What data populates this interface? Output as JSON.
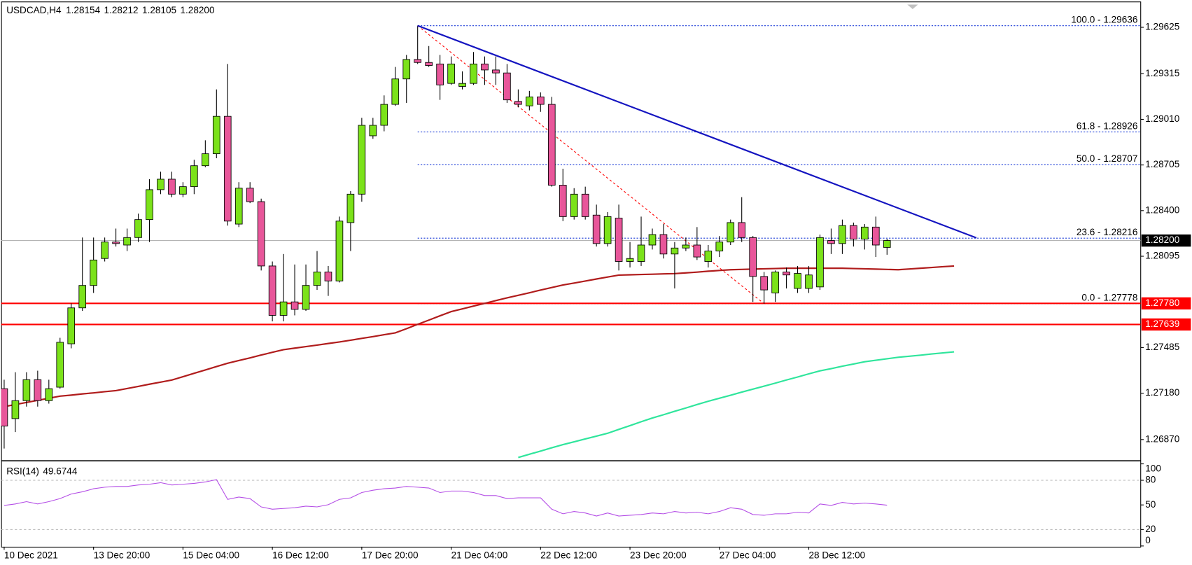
{
  "chart_data": {
    "type": "candlestick",
    "title": "USDCAD,H4",
    "categories": [
      "10 Dec 2021",
      null,
      null,
      null,
      null,
      null,
      null,
      null,
      "13 Dec 20:00",
      null,
      null,
      null,
      null,
      null,
      null,
      null,
      "15 Dec 04:00",
      null,
      null,
      null,
      null,
      null,
      null,
      null,
      "16 Dec 12:00",
      null,
      null,
      null,
      null,
      null,
      null,
      null,
      "17 Dec 20:00",
      null,
      null,
      null,
      null,
      null,
      null,
      null,
      "21 Dec 04:00",
      null,
      null,
      null,
      null,
      null,
      null,
      null,
      "22 Dec 12:00",
      null,
      null,
      null,
      null,
      null,
      null,
      null,
      "23 Dec 20:00",
      null,
      null,
      null,
      null,
      null,
      null,
      null,
      "27 Dec 04:00",
      null,
      null,
      null,
      null,
      null,
      null,
      null,
      "28 Dec 12:00",
      null,
      null,
      null,
      null,
      null,
      null,
      null,
      null,
      null,
      null,
      null,
      null,
      null,
      null,
      null
    ],
    "open": [
      1.2721,
      1.2701,
      1.2713,
      1.2727,
      1.2713,
      1.2722,
      1.2751,
      1.2775,
      1.279,
      1.2808,
      1.2819,
      1.2817,
      1.2822,
      1.2834,
      1.2854,
      1.2861,
      1.2851,
      1.2856,
      1.287,
      1.2878,
      1.2903,
      1.2831,
      1.2855,
      1.2846,
      1.2803,
      1.277,
      1.2779,
      1.2774,
      1.279,
      1.2799,
      1.2793,
      1.2832,
      1.2851,
      1.289,
      1.2897,
      1.2911,
      1.2928,
      1.2941,
      1.2939,
      1.2938,
      1.2925,
      1.2923,
      1.2925,
      1.2938,
      1.2934,
      1.2932,
      1.2913,
      1.291,
      1.2916,
      1.2911,
      1.2857,
      1.2836,
      1.2851,
      1.2837,
      1.2818,
      1.2835,
      1.2806,
      1.2806,
      1.2817,
      1.2824,
      1.2811,
      1.2815,
      1.2817,
      1.2806,
      1.2813,
      1.2819,
      1.2832,
      1.2822,
      1.2796,
      1.2785,
      1.2799,
      1.2788,
      1.2788,
      1.2789,
      1.282,
      1.2818,
      1.283,
      1.2821,
      1.2829,
      1.28154,
      null,
      null,
      null,
      null,
      null,
      null,
      null,
      null
    ],
    "high": [
      1.2727,
      1.2732,
      1.2732,
      1.2733,
      1.2727,
      1.2755,
      1.2778,
      1.2822,
      1.2822,
      1.2822,
      1.2828,
      1.2828,
      1.2838,
      1.2861,
      1.2866,
      1.2866,
      1.2859,
      1.2874,
      1.2887,
      1.2921,
      1.2938,
      1.2859,
      1.2859,
      1.2848,
      1.2806,
      1.2811,
      1.2804,
      1.2804,
      1.2813,
      1.2803,
      1.2836,
      1.2853,
      1.2902,
      1.2902,
      1.2917,
      1.2936,
      1.2944,
      1.29636,
      1.295,
      1.2944,
      1.2943,
      1.2933,
      1.2946,
      1.2943,
      1.2943,
      1.2938,
      1.2921,
      1.292,
      1.2919,
      1.2916,
      1.2868,
      1.2855,
      1.2856,
      1.2844,
      1.2839,
      1.2844,
      1.2819,
      1.2836,
      1.2828,
      1.2831,
      1.2819,
      1.2822,
      1.2829,
      1.2817,
      1.2823,
      1.2834,
      1.2849,
      1.2823,
      1.2799,
      1.28,
      1.2802,
      1.2803,
      1.2803,
      1.2824,
      1.2828,
      1.2834,
      1.2832,
      1.2831,
      1.2836,
      1.28212,
      null,
      null,
      null,
      null,
      null,
      null,
      null,
      null
    ],
    "low": [
      1.2681,
      1.2692,
      1.2709,
      1.2709,
      1.2711,
      1.2721,
      1.2748,
      1.2773,
      1.2785,
      1.2806,
      1.2816,
      1.2813,
      1.2819,
      1.2819,
      1.2851,
      1.2849,
      1.2849,
      1.2851,
      1.2869,
      1.2875,
      1.283,
      1.2829,
      1.2845,
      1.28,
      1.2766,
      1.2766,
      1.277,
      1.2773,
      1.2787,
      1.2783,
      1.2792,
      1.2813,
      1.2846,
      1.2888,
      1.2893,
      1.291,
      1.2912,
      1.2938,
      1.2936,
      1.2914,
      1.2924,
      1.2921,
      1.2924,
      1.2924,
      1.2924,
      1.2912,
      1.2909,
      1.2907,
      1.2906,
      1.2856,
      1.2833,
      1.2834,
      1.2834,
      1.2816,
      1.2816,
      1.28,
      1.2802,
      1.2803,
      1.2814,
      1.2808,
      1.2788,
      1.2813,
      1.2807,
      1.2802,
      1.2809,
      1.2817,
      1.2819,
      1.2779,
      1.27778,
      1.2779,
      1.2788,
      1.2785,
      1.2785,
      1.2787,
      1.2811,
      1.2811,
      1.2816,
      1.2814,
      1.2809,
      1.28105,
      null,
      null,
      null,
      null,
      null,
      null,
      null,
      null
    ],
    "close": [
      1.2696,
      1.2713,
      1.2727,
      1.2713,
      1.2721,
      1.2752,
      1.2775,
      1.279,
      1.2807,
      1.2819,
      1.2818,
      1.2822,
      1.2834,
      1.2854,
      1.2861,
      1.2851,
      1.2856,
      1.287,
      1.2878,
      1.2903,
      1.2833,
      1.2855,
      1.2846,
      1.2803,
      1.277,
      1.2779,
      1.2774,
      1.279,
      1.2799,
      1.2793,
      1.2833,
      1.2851,
      1.2897,
      1.2897,
      1.2911,
      1.2928,
      1.2941,
      1.2939,
      1.2937,
      1.2924,
      1.2938,
      1.2925,
      1.2938,
      1.2934,
      1.2932,
      1.2914,
      1.2911,
      1.2916,
      1.2911,
      1.2857,
      1.2836,
      1.2851,
      1.2836,
      1.2818,
      1.2836,
      1.2806,
      1.2808,
      1.2817,
      1.2824,
      1.2811,
      1.2815,
      1.2817,
      1.2809,
      1.2813,
      1.2819,
      1.2832,
      1.2822,
      1.2796,
      1.2787,
      1.2799,
      1.2797,
      1.2798,
      1.2797,
      1.2822,
      1.2818,
      1.283,
      1.2821,
      1.2829,
      1.2817,
      1.282,
      null,
      null,
      null,
      null,
      null,
      null,
      null,
      null
    ],
    "up_color": "#7be21a",
    "down_color": "#e8569a",
    "ylim": [
      1.26733,
      1.29777
    ],
    "yticks": [
      1.29625,
      1.29315,
      {
        "value": 1.2901,
        "label": "1.29010"
      },
      1.28705,
      {
        "value": 1.284,
        "label": "1.28400"
      },
      1.28095,
      1.27485,
      {
        "value": 1.2718,
        "label": "1.27180"
      },
      {
        "value": 1.2687,
        "label": "1.26870"
      }
    ],
    "last": {
      "value": 1.282,
      "label": "1.28200"
    },
    "series": [
      {
        "color": "#b01c1c",
        "values": [
          1.2709,
          1.27104,
          1.27118,
          1.27132,
          1.27146,
          1.2716,
          1.27167,
          1.27175,
          1.27182,
          1.2719,
          1.27197,
          1.27211,
          1.27225,
          1.2724,
          1.27254,
          1.27268,
          1.2729,
          1.27313,
          1.27335,
          1.27358,
          1.2738,
          1.27398,
          1.27416,
          1.27435,
          1.27453,
          1.27471,
          1.27481,
          1.27491,
          1.27501,
          1.27512,
          1.27522,
          1.27534,
          1.27546,
          1.27558,
          1.27571,
          1.27583,
          1.27611,
          1.2764,
          1.27668,
          1.27697,
          1.27725,
          1.27743,
          1.27762,
          1.2778,
          1.27799,
          1.27817,
          1.27834,
          1.27851,
          1.27869,
          1.27886,
          1.27903,
          1.27916,
          1.27929,
          1.27943,
          1.27956,
          1.27969,
          1.27971,
          1.27973,
          1.27975,
          1.27977,
          1.27979,
          1.27984,
          1.27989,
          1.27995,
          1.28,
          1.28005,
          1.28007,
          1.28009,
          1.28011,
          1.28013,
          1.28015,
          1.28015,
          1.28015,
          1.28015,
          1.28015,
          1.28015,
          1.28013,
          1.28011,
          1.28009,
          1.28007,
          1.28005,
          1.2801,
          1.28015,
          1.2802,
          1.28025,
          1.2803,
          null,
          null
        ]
      },
      {
        "color": "#2fe59c",
        "values": [
          null,
          null,
          null,
          null,
          null,
          null,
          null,
          null,
          null,
          null,
          null,
          null,
          null,
          null,
          null,
          null,
          null,
          null,
          null,
          null,
          null,
          null,
          null,
          null,
          null,
          null,
          null,
          null,
          null,
          null,
          null,
          null,
          null,
          null,
          null,
          null,
          null,
          null,
          null,
          null,
          null,
          null,
          null,
          null,
          null,
          null,
          1.2675,
          1.26772,
          1.26793,
          1.26815,
          1.26836,
          1.26855,
          1.26874,
          1.26893,
          1.26912,
          1.26938,
          1.26963,
          1.26989,
          1.27014,
          1.27036,
          1.27059,
          1.27081,
          1.27104,
          1.27126,
          1.27146,
          1.27166,
          1.27187,
          1.27207,
          1.27227,
          1.27247,
          1.27268,
          1.27288,
          1.27309,
          1.27329,
          1.27344,
          1.2736,
          1.27375,
          1.2739,
          1.274,
          1.2741,
          1.2742,
          1.27427,
          1.27434,
          1.27442,
          1.27449,
          1.27456,
          null,
          null
        ]
      }
    ],
    "levels": [
      {
        "value": 1.2778,
        "label": "1.27780"
      },
      {
        "value": 1.27639,
        "label": "1.27639"
      }
    ],
    "level_color": "#ff0000",
    "fibonacci": {
      "color": "#1f3fd8",
      "values": [
        1.29636,
        1.28926,
        1.28707,
        1.28216,
        1.27778
      ],
      "labels": [
        "100.0 - 1.29636",
        "61.8 - 1.28926",
        "50.0 - 1.28707",
        "23.6 - 1.28216",
        "0.0 - 1.27778"
      ]
    },
    "trendline": {
      "color": "#1414c0",
      "x": [
        37,
        87
      ],
      "values": [
        1.29636,
        1.28218
      ]
    },
    "rsi": {
      "title": "RSI(14)",
      "color": "#b44ee6",
      "values": [
        49.4,
        51.2,
        54.0,
        51.2,
        54.0,
        57.7,
        63.3,
        66.0,
        69.7,
        71.6,
        72.5,
        72.5,
        74.3,
        75.2,
        77.1,
        74.3,
        75.2,
        76.2,
        78.0,
        80.8,
        56.8,
        59.6,
        57.7,
        47.6,
        44.8,
        45.7,
        46.6,
        48.5,
        47.6,
        50.3,
        56.8,
        58.6,
        65.1,
        67.9,
        69.7,
        70.6,
        72.5,
        71.6,
        70.6,
        65.1,
        66.9,
        66.9,
        65.1,
        61.4,
        61.4,
        57.7,
        58.6,
        58.6,
        58.6,
        44.8,
        39.2,
        42.0,
        40.2,
        36.5,
        40.2,
        36.5,
        37.4,
        38.3,
        40.2,
        39.2,
        42.0,
        40.2,
        41.1,
        39.2,
        42.0,
        46.6,
        44.8,
        38.3,
        37.4,
        39.2,
        39.2,
        41.1,
        40.2,
        51.2,
        49.4,
        53.1,
        51.2,
        52.2,
        51.2,
        49.6744,
        null,
        null,
        null,
        null,
        null,
        null,
        null,
        null
      ],
      "ylim": [
        0,
        100
      ],
      "yticks": [
        100,
        80,
        50,
        20,
        0
      ],
      "levels": [
        80,
        20
      ]
    }
  }
}
